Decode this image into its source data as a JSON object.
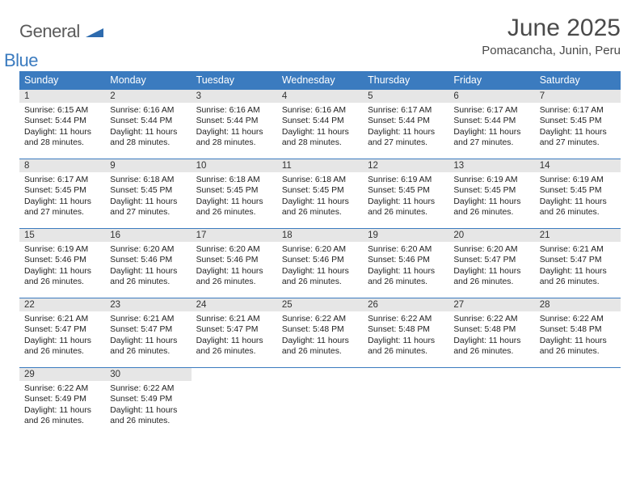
{
  "brand": {
    "text1": "General",
    "text2": "Blue",
    "shape_color": "#2e6bae"
  },
  "title": "June 2025",
  "location": "Pomacancha, Junin, Peru",
  "colors": {
    "header_bg": "#3b7bbf",
    "header_text": "#ffffff",
    "daynum_bg": "#e6e6e6",
    "cell_border": "#3b7bbf",
    "body_text": "#222222",
    "title_text": "#4a4a4a"
  },
  "fonts": {
    "title_size": 30,
    "location_size": 15,
    "th_size": 12.5,
    "cell_size": 10.4
  },
  "weekdays": [
    "Sunday",
    "Monday",
    "Tuesday",
    "Wednesday",
    "Thursday",
    "Friday",
    "Saturday"
  ],
  "weeks": [
    [
      {
        "n": "1",
        "sr": "6:15 AM",
        "ss": "5:44 PM",
        "dh": "11",
        "dm": "28"
      },
      {
        "n": "2",
        "sr": "6:16 AM",
        "ss": "5:44 PM",
        "dh": "11",
        "dm": "28"
      },
      {
        "n": "3",
        "sr": "6:16 AM",
        "ss": "5:44 PM",
        "dh": "11",
        "dm": "28"
      },
      {
        "n": "4",
        "sr": "6:16 AM",
        "ss": "5:44 PM",
        "dh": "11",
        "dm": "28"
      },
      {
        "n": "5",
        "sr": "6:17 AM",
        "ss": "5:44 PM",
        "dh": "11",
        "dm": "27"
      },
      {
        "n": "6",
        "sr": "6:17 AM",
        "ss": "5:44 PM",
        "dh": "11",
        "dm": "27"
      },
      {
        "n": "7",
        "sr": "6:17 AM",
        "ss": "5:45 PM",
        "dh": "11",
        "dm": "27"
      }
    ],
    [
      {
        "n": "8",
        "sr": "6:17 AM",
        "ss": "5:45 PM",
        "dh": "11",
        "dm": "27"
      },
      {
        "n": "9",
        "sr": "6:18 AM",
        "ss": "5:45 PM",
        "dh": "11",
        "dm": "27"
      },
      {
        "n": "10",
        "sr": "6:18 AM",
        "ss": "5:45 PM",
        "dh": "11",
        "dm": "26"
      },
      {
        "n": "11",
        "sr": "6:18 AM",
        "ss": "5:45 PM",
        "dh": "11",
        "dm": "26"
      },
      {
        "n": "12",
        "sr": "6:19 AM",
        "ss": "5:45 PM",
        "dh": "11",
        "dm": "26"
      },
      {
        "n": "13",
        "sr": "6:19 AM",
        "ss": "5:45 PM",
        "dh": "11",
        "dm": "26"
      },
      {
        "n": "14",
        "sr": "6:19 AM",
        "ss": "5:45 PM",
        "dh": "11",
        "dm": "26"
      }
    ],
    [
      {
        "n": "15",
        "sr": "6:19 AM",
        "ss": "5:46 PM",
        "dh": "11",
        "dm": "26"
      },
      {
        "n": "16",
        "sr": "6:20 AM",
        "ss": "5:46 PM",
        "dh": "11",
        "dm": "26"
      },
      {
        "n": "17",
        "sr": "6:20 AM",
        "ss": "5:46 PM",
        "dh": "11",
        "dm": "26"
      },
      {
        "n": "18",
        "sr": "6:20 AM",
        "ss": "5:46 PM",
        "dh": "11",
        "dm": "26"
      },
      {
        "n": "19",
        "sr": "6:20 AM",
        "ss": "5:46 PM",
        "dh": "11",
        "dm": "26"
      },
      {
        "n": "20",
        "sr": "6:20 AM",
        "ss": "5:47 PM",
        "dh": "11",
        "dm": "26"
      },
      {
        "n": "21",
        "sr": "6:21 AM",
        "ss": "5:47 PM",
        "dh": "11",
        "dm": "26"
      }
    ],
    [
      {
        "n": "22",
        "sr": "6:21 AM",
        "ss": "5:47 PM",
        "dh": "11",
        "dm": "26"
      },
      {
        "n": "23",
        "sr": "6:21 AM",
        "ss": "5:47 PM",
        "dh": "11",
        "dm": "26"
      },
      {
        "n": "24",
        "sr": "6:21 AM",
        "ss": "5:47 PM",
        "dh": "11",
        "dm": "26"
      },
      {
        "n": "25",
        "sr": "6:22 AM",
        "ss": "5:48 PM",
        "dh": "11",
        "dm": "26"
      },
      {
        "n": "26",
        "sr": "6:22 AM",
        "ss": "5:48 PM",
        "dh": "11",
        "dm": "26"
      },
      {
        "n": "27",
        "sr": "6:22 AM",
        "ss": "5:48 PM",
        "dh": "11",
        "dm": "26"
      },
      {
        "n": "28",
        "sr": "6:22 AM",
        "ss": "5:48 PM",
        "dh": "11",
        "dm": "26"
      }
    ],
    [
      {
        "n": "29",
        "sr": "6:22 AM",
        "ss": "5:49 PM",
        "dh": "11",
        "dm": "26"
      },
      {
        "n": "30",
        "sr": "6:22 AM",
        "ss": "5:49 PM",
        "dh": "11",
        "dm": "26"
      },
      null,
      null,
      null,
      null,
      null
    ]
  ],
  "labels": {
    "sunrise": "Sunrise:",
    "sunset": "Sunset:",
    "daylight": "Daylight:",
    "hours": "hours",
    "and": "and",
    "minutes": "minutes."
  }
}
